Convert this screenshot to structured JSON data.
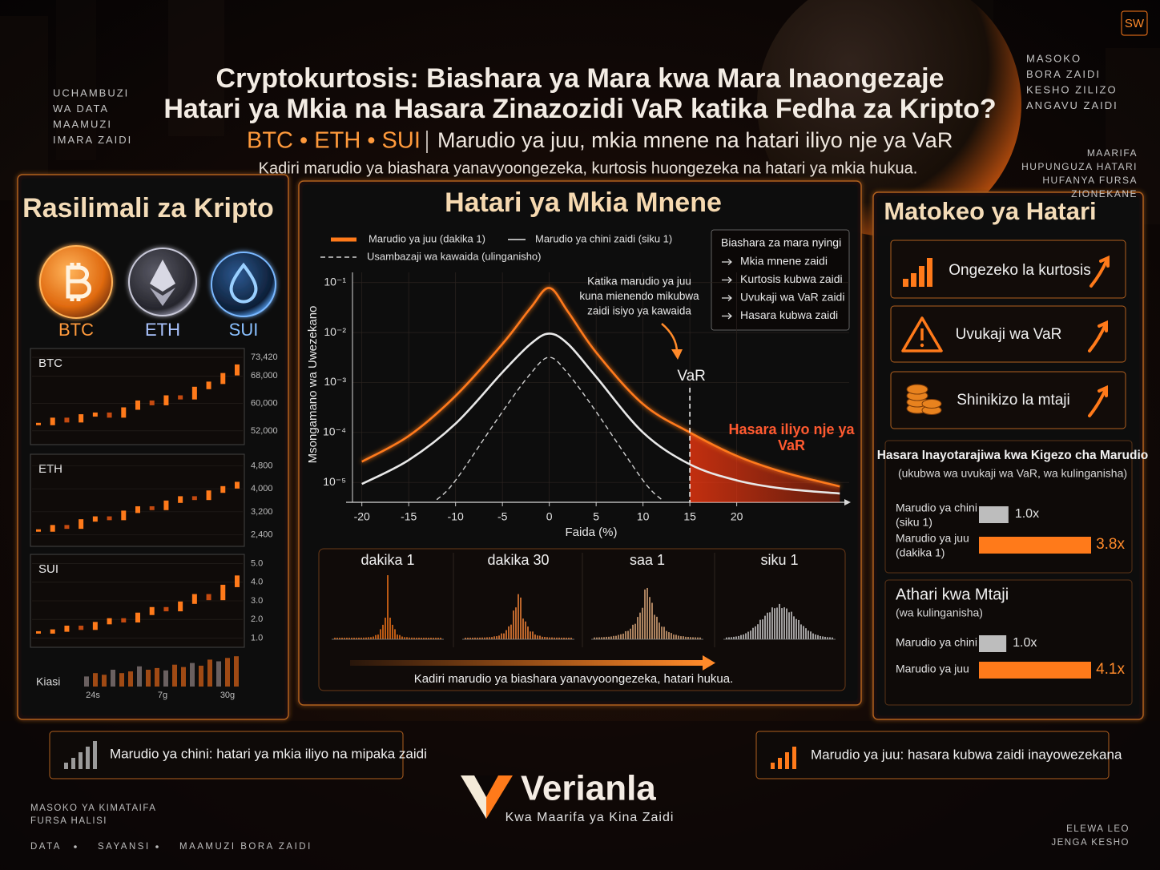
{
  "badge": "SW",
  "side_notes": {
    "left_top": [
      "UCHAMBUZI",
      "WA DATA",
      "MAAMUZI",
      "IMARA ZAIDI"
    ],
    "right_top": [
      "MASOKO",
      "BORA ZAIDI",
      "KESHO ZILIZO",
      "ANGAVU ZAIDI"
    ],
    "right_mid": [
      "MAARIFA",
      "HUPUNGUZA HATARI",
      "HUFANYA FURSA",
      "ZIONEKANE"
    ]
  },
  "header": {
    "title": [
      "Cryptokurtosis: Biashara ya Mara kwa Mara Inaongezaje",
      "Hatari ya Mkia na Hasara Zinazozidi VaR katika Fedha za Kripto?"
    ],
    "assets": "BTC • ETH • SUI",
    "subtitle": "Marudio ya juu, mkia mnene na hatari iliyo nje ya VaR",
    "tagline": "Kadiri marudio ya biashara yanavyoongezeka, kurtosis huongezeka na hatari ya mkia hukua."
  },
  "assets_panel": {
    "title": "Rasilimali za Kripto",
    "coins": [
      "BTC",
      "ETH",
      "SUI"
    ],
    "charts": [
      {
        "name": "BTC",
        "color": "#ff7a1a",
        "ylim": [
          48000,
          76000
        ],
        "yticks": [
          {
            "value": 73420,
            "label": "73,420"
          },
          {
            "value": 68000,
            "label": "68,000"
          },
          {
            "value": 60000,
            "label": "60,000"
          },
          {
            "value": 52000,
            "label": "52,000"
          }
        ],
        "values": [
          54000,
          55500,
          54800,
          56500,
          57000,
          56200,
          58500,
          60500,
          59800,
          62000,
          61500,
          64500,
          66000,
          68500,
          71000
        ]
      },
      {
        "name": "ETH",
        "color": "#ff7a1a",
        "ylim": [
          2000,
          5200
        ],
        "yticks": [
          {
            "value": 4800,
            "label": "4,800"
          },
          {
            "value": 4000,
            "label": "4,000"
          },
          {
            "value": 3200,
            "label": "3,200"
          },
          {
            "value": 2400,
            "label": "2,400"
          }
        ],
        "values": [
          2550,
          2700,
          2650,
          2900,
          3000,
          2950,
          3200,
          3350,
          3300,
          3550,
          3700,
          3650,
          3900,
          4050,
          4200
        ]
      },
      {
        "name": "SUI",
        "color": "#ff7a1a",
        "ylim": [
          0.5,
          5.5
        ],
        "yticks": [
          {
            "value": 5,
            "label": "5.0"
          },
          {
            "value": 4,
            "label": "4.0"
          },
          {
            "value": 3,
            "label": "3.0"
          },
          {
            "value": 2,
            "label": "2.0"
          },
          {
            "value": 1,
            "label": "1.0"
          }
        ],
        "values": [
          1.3,
          1.4,
          1.6,
          1.5,
          1.8,
          2.0,
          1.9,
          2.3,
          2.6,
          2.5,
          2.9,
          3.3,
          3.1,
          3.8,
          4.3
        ]
      }
    ],
    "volume": {
      "label": "Kiasi",
      "ylim": [
        0,
        10
      ],
      "xticks": [
        "24s",
        "7g",
        "30g"
      ],
      "values": [
        3,
        4,
        3.5,
        5,
        4,
        4.5,
        6,
        5,
        5.5,
        4.8,
        6.5,
        5.8,
        7,
        6.2,
        8,
        7.5,
        8.5,
        9
      ]
    }
  },
  "chart_data": {
    "type": "line",
    "title": "Hatari ya Mkia Mnene",
    "x_label": "Faida (%)",
    "y_label": "Msongamano wa Uwezekano",
    "log_y": true,
    "xlim": [
      -21,
      32
    ],
    "ylim": [
      4e-06,
      0.16
    ],
    "xticks": [
      -20,
      -15,
      -10,
      -5,
      0,
      5,
      10,
      15,
      20
    ],
    "yticks": [
      {
        "value": 0.1,
        "label": "10⁻¹"
      },
      {
        "value": 0.01,
        "label": "10⁻²"
      },
      {
        "value": 0.001,
        "label": "10⁻³"
      },
      {
        "value": 0.0001,
        "label": "10⁻⁴"
      },
      {
        "value": 1e-05,
        "label": "10⁻⁵"
      }
    ],
    "series": [
      {
        "name": "Marudio ya juu (dakika 1)",
        "color": "#ff7a1a",
        "style": "solid",
        "x": [
          -20,
          -15,
          -10,
          -5,
          -2,
          0,
          2,
          5,
          10,
          15,
          20,
          25,
          31
        ],
        "values": [
          2.6e-05,
          8.5e-05,
          0.00054,
          0.0059,
          0.031,
          0.078,
          0.026,
          0.004,
          0.00037,
          0.0001,
          3.4e-05,
          1.6e-05,
          8.3e-06
        ]
      },
      {
        "name": "Marudio ya chini zaidi (siku 1)",
        "color": "#e8e8e8",
        "style": "solid",
        "x": [
          -20,
          -15,
          -10,
          -5,
          -2,
          0,
          2,
          5,
          10,
          15,
          20,
          25,
          31
        ],
        "values": [
          9.3e-06,
          2.8e-05,
          0.00015,
          0.0016,
          0.0059,
          0.0095,
          0.0059,
          0.0013,
          0.0001,
          2.3e-05,
          1.1e-05,
          7.5e-06,
          6e-06
        ]
      },
      {
        "name": "Usambazaji wa kawaida (ulinganisho)",
        "color": "#d0d0d0",
        "style": "dashed",
        "x": [
          -12,
          -10,
          -5,
          -2,
          0,
          2,
          5,
          10,
          12
        ],
        "values": [
          4.5e-06,
          1.1e-05,
          0.00026,
          0.0015,
          0.0032,
          0.0015,
          0.00026,
          1.1e-05,
          4.5e-06
        ]
      }
    ],
    "var": {
      "label": "VaR",
      "value": 15
    },
    "annotation": [
      "Katika marudio ya juu",
      "kuna mienendo mikubwa",
      "zaidi isiyo ya kawaida"
    ],
    "tail_label": [
      "Hasara iliyo nje ya",
      "VaR"
    ],
    "note_box": {
      "title": "Biashara za mara nyingi",
      "items": [
        "Mkia mnene zaidi",
        "Kurtosis kubwa zaidi",
        "Uvukaji wa VaR zaidi",
        "Hasara kubwa zaidi"
      ]
    }
  },
  "frequency_panel": {
    "labels": [
      "dakika 1",
      "dakika 30",
      "saa 1",
      "siku 1"
    ],
    "caption": "Kadiri marudio ya biashara yanavyoongezeka, hatari hukua."
  },
  "risk_panel": {
    "title": "Matokeo ya Hatari",
    "cards": [
      "Ongezeko la kurtosis",
      "Uvukaji wa VaR",
      "Shinikizo la mtaji"
    ],
    "loss": {
      "title": "Hasara Inayotarajiwa kwa Kigezo cha Marudio",
      "subtitle": "(ukubwa wa uvukaji wa VaR, wa kulinganisha)",
      "categories": [
        [
          "Marudio ya chini",
          "(siku 1)"
        ],
        [
          "Marudio ya juu",
          "(dakika 1)"
        ]
      ],
      "values": [
        1.0,
        3.8
      ],
      "value_labels": [
        "1.0x",
        "3.8x"
      ],
      "colors": [
        "#bdbdbd",
        "#ff7a1a"
      ],
      "xlim": [
        0,
        3.8
      ]
    },
    "capital": {
      "title": "Athari kwa Mtaji",
      "subtitle": "(wa kulinganisha)",
      "categories": [
        [
          "Marudio ya chini"
        ],
        [
          "Marudio ya juu"
        ]
      ],
      "values": [
        1.0,
        4.1
      ],
      "value_labels": [
        "1.0x",
        "4.1x"
      ],
      "colors": [
        "#bdbdbd",
        "#ff7a1a"
      ],
      "xlim": [
        0,
        4.1
      ]
    }
  },
  "callouts": [
    "Marudio ya chini: hatari ya mkia iliyo na mipaka zaidi",
    "Marudio ya juu: hasara kubwa zaidi inayowezekana"
  ],
  "brand": {
    "name": "Verianla",
    "tagline": "Kwa Maarifa ya Kina Zaidi"
  },
  "footer": {
    "left": [
      "MASOKO YA KIMATAIFA",
      "FURSA HALISI"
    ],
    "tags": [
      "DATA",
      "SAYANSI",
      "MAAMUZI BORA ZAIDI"
    ],
    "right": [
      "ELEWA LEO",
      "JENGA KESHO"
    ]
  }
}
